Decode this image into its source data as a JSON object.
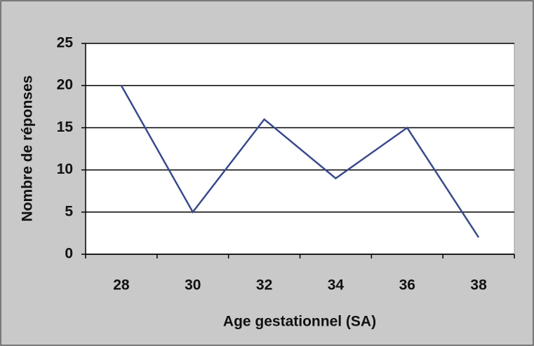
{
  "chart_data": {
    "type": "line",
    "x_label": "Age gestationnel (SA)",
    "y_label": "Nombre de réponses",
    "categories": [
      "28",
      "30",
      "32",
      "34",
      "36",
      "38"
    ],
    "series": [
      {
        "name": "Nombre de réponses",
        "color": "#3a4a8c",
        "values": [
          20,
          5,
          16,
          9,
          15,
          2
        ]
      }
    ],
    "ylim": [
      0,
      25
    ],
    "yticks": [
      0,
      5,
      10,
      15,
      20,
      25
    ],
    "grid": true
  }
}
